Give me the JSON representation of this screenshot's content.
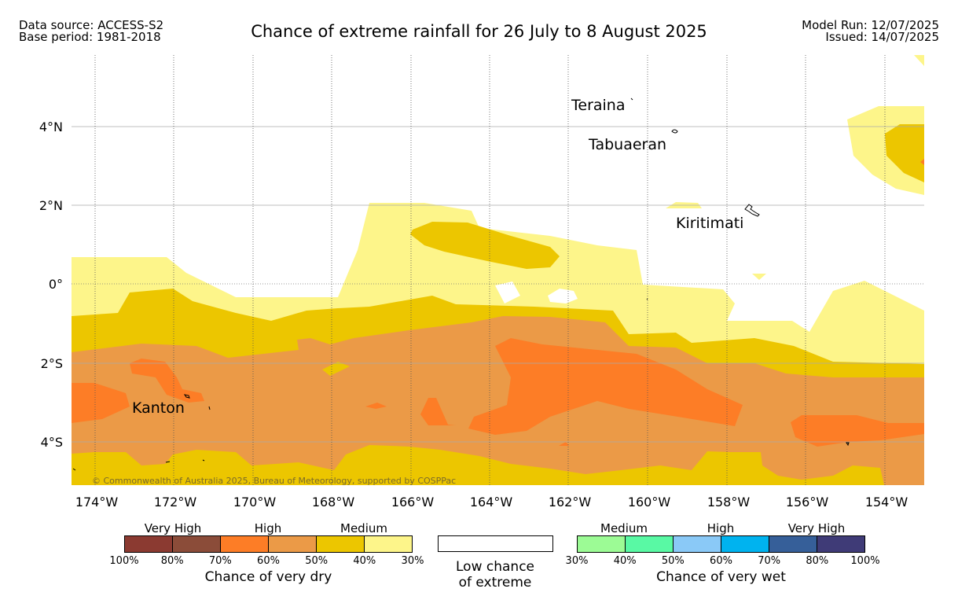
{
  "header": {
    "source_line": "Data source: ACCESS-S2",
    "base_line": "Base period: 1981-2018",
    "title": "Chance of extreme rainfall for 26 July to 8 August 2025",
    "model_run": "Model Run: 12/07/2025",
    "issued": "Issued: 14/07/2025"
  },
  "map": {
    "lat_labels": [
      "4°N",
      "2°N",
      "0°",
      "2°S",
      "4°S"
    ],
    "lon_labels": [
      "174°W",
      "172°W",
      "170°W",
      "168°W",
      "166°W",
      "164°W",
      "162°W",
      "160°W",
      "158°W",
      "156°W",
      "154°W"
    ],
    "places": [
      "Teraina",
      "Tabuaeran",
      "Kiritimati",
      "Kanton"
    ],
    "copyright": "© Commonwealth of Australia 2025, Bureau of Meteorology, supported by COSPPac",
    "colors": {
      "dry_medium_light": "#fdf58a",
      "dry_medium": "#ecc600",
      "dry_high_light": "#eb9a47",
      "dry_high": "#fd7d26"
    }
  },
  "legend": {
    "dry": {
      "group_labels": [
        "Very High",
        "High",
        "Medium"
      ],
      "tick_labels": [
        "100%",
        "80%",
        "70%",
        "60%",
        "50%",
        "40%",
        "30%"
      ],
      "caption": "Chance of very dry",
      "colors": [
        "#8b3a31",
        "#8b4c39",
        "#fd7d26",
        "#eb9a47",
        "#ecc600",
        "#fdf58a"
      ]
    },
    "low": {
      "caption_line1": "Low chance",
      "caption_line2": "of extreme"
    },
    "wet": {
      "group_labels": [
        "Medium",
        "High",
        "Very High"
      ],
      "tick_labels": [
        "30%",
        "40%",
        "50%",
        "60%",
        "70%",
        "80%",
        "100%"
      ],
      "caption": "Chance of very wet",
      "colors": [
        "#9cfb95",
        "#59f9a4",
        "#8ac9f7",
        "#00b3ef",
        "#365f99",
        "#3f3b77"
      ]
    }
  }
}
